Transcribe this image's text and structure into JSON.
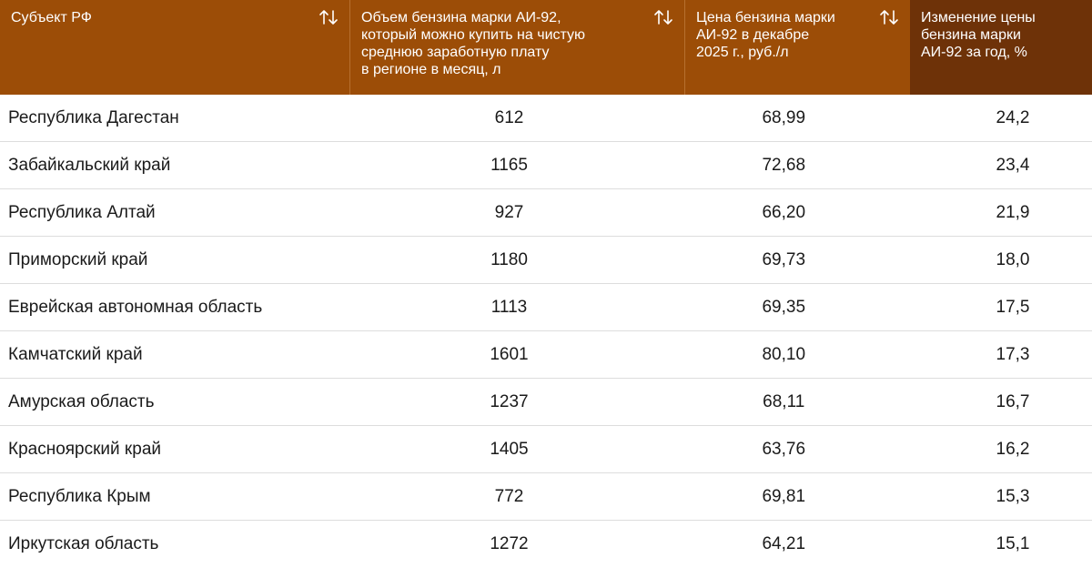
{
  "table": {
    "headers": [
      "Субъект РФ",
      "Объем бензина марки АИ-92, который можно купить на чистую среднюю заработную плату в регионе в месяц, л",
      "Цена бензина марки АИ-92 в декабре 2025 г., руб./л",
      "Изменение цены бензина марки АИ-92 за год, %"
    ],
    "header_line_breaks": [
      [
        "Субъект РФ"
      ],
      [
        "Объем бензина марки АИ-92,",
        "который можно купить на чистую",
        "среднюю заработную плату",
        "в регионе в месяц, л"
      ],
      [
        "Цена бензина марки",
        "АИ-92 в декабре",
        "2025 г., руб./л"
      ],
      [
        "Изменение цены",
        "бензина марки",
        "АИ-92 за год, %"
      ]
    ],
    "sort_icon": "sort-up-down-icon",
    "colors": {
      "header_bg": "#9c4d07",
      "header_active_bg": "#6e3208",
      "header_text": "#ffffff",
      "row_divider": "#dddddd"
    },
    "rows": [
      [
        "Республика Дагестан",
        "612",
        "68,99",
        "24,2"
      ],
      [
        "Забайкальский край",
        "1165",
        "72,68",
        "23,4"
      ],
      [
        "Республика Алтай",
        "927",
        "66,20",
        "21,9"
      ],
      [
        "Приморский край",
        "1180",
        "69,73",
        "18,0"
      ],
      [
        "Еврейская автономная область",
        "1113",
        "69,35",
        "17,5"
      ],
      [
        "Камчатский край",
        "1601",
        "80,10",
        "17,3"
      ],
      [
        "Амурская область",
        "1237",
        "68,11",
        "16,7"
      ],
      [
        "Красноярский край",
        "1405",
        "63,76",
        "16,2"
      ],
      [
        "Республика Крым",
        "772",
        "69,81",
        "15,3"
      ],
      [
        "Иркутская область",
        "1272",
        "64,21",
        "15,1"
      ]
    ]
  }
}
